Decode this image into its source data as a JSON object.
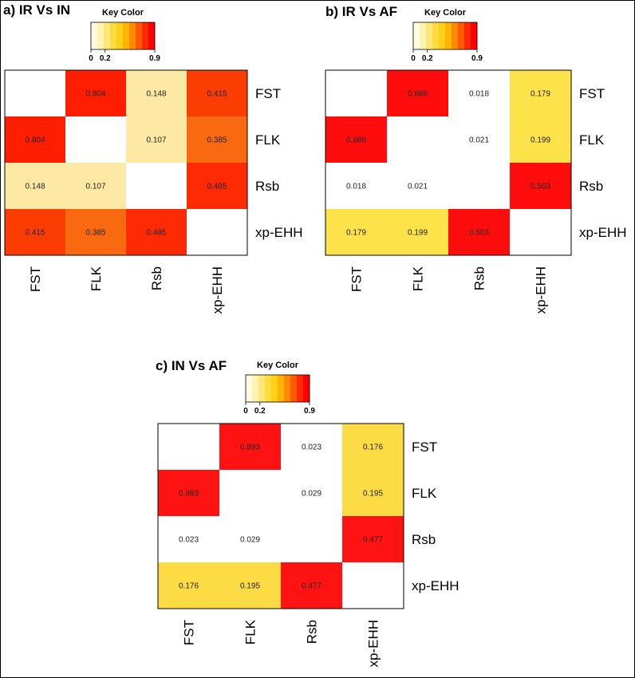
{
  "chart_data": [
    {
      "type": "heatmap",
      "title": "a) IR Vs IN",
      "key_title": "Key Color",
      "key_ticks": [
        "0",
        "0.2",
        "0.9"
      ],
      "columns": [
        "FST",
        "FLK",
        "Rsb",
        "xp-EHH"
      ],
      "rows": [
        "FST",
        "FLK",
        "Rsb",
        "xp-EHH"
      ],
      "values": [
        [
          null,
          0.804,
          0.148,
          0.415
        ],
        [
          0.804,
          null,
          0.107,
          0.385
        ],
        [
          0.148,
          0.107,
          null,
          0.485
        ],
        [
          0.415,
          0.385,
          0.485,
          null
        ]
      ],
      "cell_labels": [
        [
          "",
          "0.804",
          "0.148",
          "0.415"
        ],
        [
          "0.804",
          "",
          "0.107",
          "0.385"
        ],
        [
          "0.148",
          "0.107",
          "",
          "0.485"
        ],
        [
          "0.415",
          "0.385",
          "0.485",
          ""
        ]
      ],
      "cell_colors": [
        [
          "#ffffff",
          "#ff1e00",
          "#fde9a4",
          "#fb3d04"
        ],
        [
          "#ff1e00",
          "#ffffff",
          "#fde9a4",
          "#f96a10"
        ],
        [
          "#fde9a4",
          "#fde9a4",
          "#ffffff",
          "#fd2a03"
        ],
        [
          "#fb3d04",
          "#f96a10",
          "#fd2a03",
          "#ffffff"
        ]
      ]
    },
    {
      "type": "heatmap",
      "title": "b) IR Vs AF",
      "key_title": "Key Color",
      "key_ticks": [
        "0",
        "0.2",
        "0.9"
      ],
      "columns": [
        "FST",
        "FLK",
        "Rsb",
        "xp-EHH"
      ],
      "rows": [
        "FST",
        "FLK",
        "Rsb",
        "xp-EHH"
      ],
      "values": [
        [
          null,
          0.886,
          0.018,
          0.179
        ],
        [
          0.886,
          null,
          0.021,
          0.199
        ],
        [
          0.018,
          0.021,
          null,
          0.503
        ],
        [
          0.179,
          0.199,
          0.503,
          null
        ]
      ],
      "cell_labels": [
        [
          "",
          "0.886",
          "0.018",
          "0.179"
        ],
        [
          "0.886",
          "",
          "0.021",
          "0.199"
        ],
        [
          "0.018",
          "0.021",
          "",
          "0.503"
        ],
        [
          "0.179",
          "0.199",
          "0.503",
          ""
        ]
      ],
      "cell_colors": [
        [
          "#ffffff",
          "#ff0d0d",
          "#ffffff",
          "#fde24a"
        ],
        [
          "#ff0d0d",
          "#ffffff",
          "#ffffff",
          "#fde24a"
        ],
        [
          "#ffffff",
          "#ffffff",
          "#ffffff",
          "#ff0d0d"
        ],
        [
          "#fde24a",
          "#fde24a",
          "#ff0d0d",
          "#ffffff"
        ]
      ]
    },
    {
      "type": "heatmap",
      "title": "c) IN Vs AF",
      "key_title": "Key Color",
      "key_ticks": [
        "0",
        "0.2",
        "0.9"
      ],
      "columns": [
        "FST",
        "FLK",
        "Rsb",
        "xp-EHH"
      ],
      "rows": [
        "FST",
        "FLK",
        "Rsb",
        "xp-EHH"
      ],
      "values": [
        [
          null,
          0.893,
          0.023,
          0.176
        ],
        [
          0.893,
          null,
          0.029,
          0.195
        ],
        [
          0.023,
          0.029,
          null,
          0.477
        ],
        [
          0.176,
          0.195,
          0.477,
          null
        ]
      ],
      "cell_labels": [
        [
          "",
          "0.893",
          "0.023",
          "0.176"
        ],
        [
          "0.893",
          "",
          "0.029",
          "0.195"
        ],
        [
          "0.023",
          "0.029",
          "",
          "0.477"
        ],
        [
          "0.176",
          "0.195",
          "0.477",
          ""
        ]
      ],
      "cell_colors": [
        [
          "#ffffff",
          "#ff1212",
          "#ffffff",
          "#fddb45"
        ],
        [
          "#ff1212",
          "#ffffff",
          "#ffffff",
          "#fddb45"
        ],
        [
          "#ffffff",
          "#ffffff",
          "#ffffff",
          "#ff1212"
        ],
        [
          "#fddb45",
          "#fddb45",
          "#ff1212",
          "#ffffff"
        ]
      ]
    }
  ],
  "key_colors": [
    "#fffbe0",
    "#fff3b0",
    "#ffe77a",
    "#ffdb3f",
    "#ffcf1a",
    "#ffb400",
    "#ff8a00",
    "#ff5a00",
    "#ff2a00",
    "#ff0000"
  ]
}
